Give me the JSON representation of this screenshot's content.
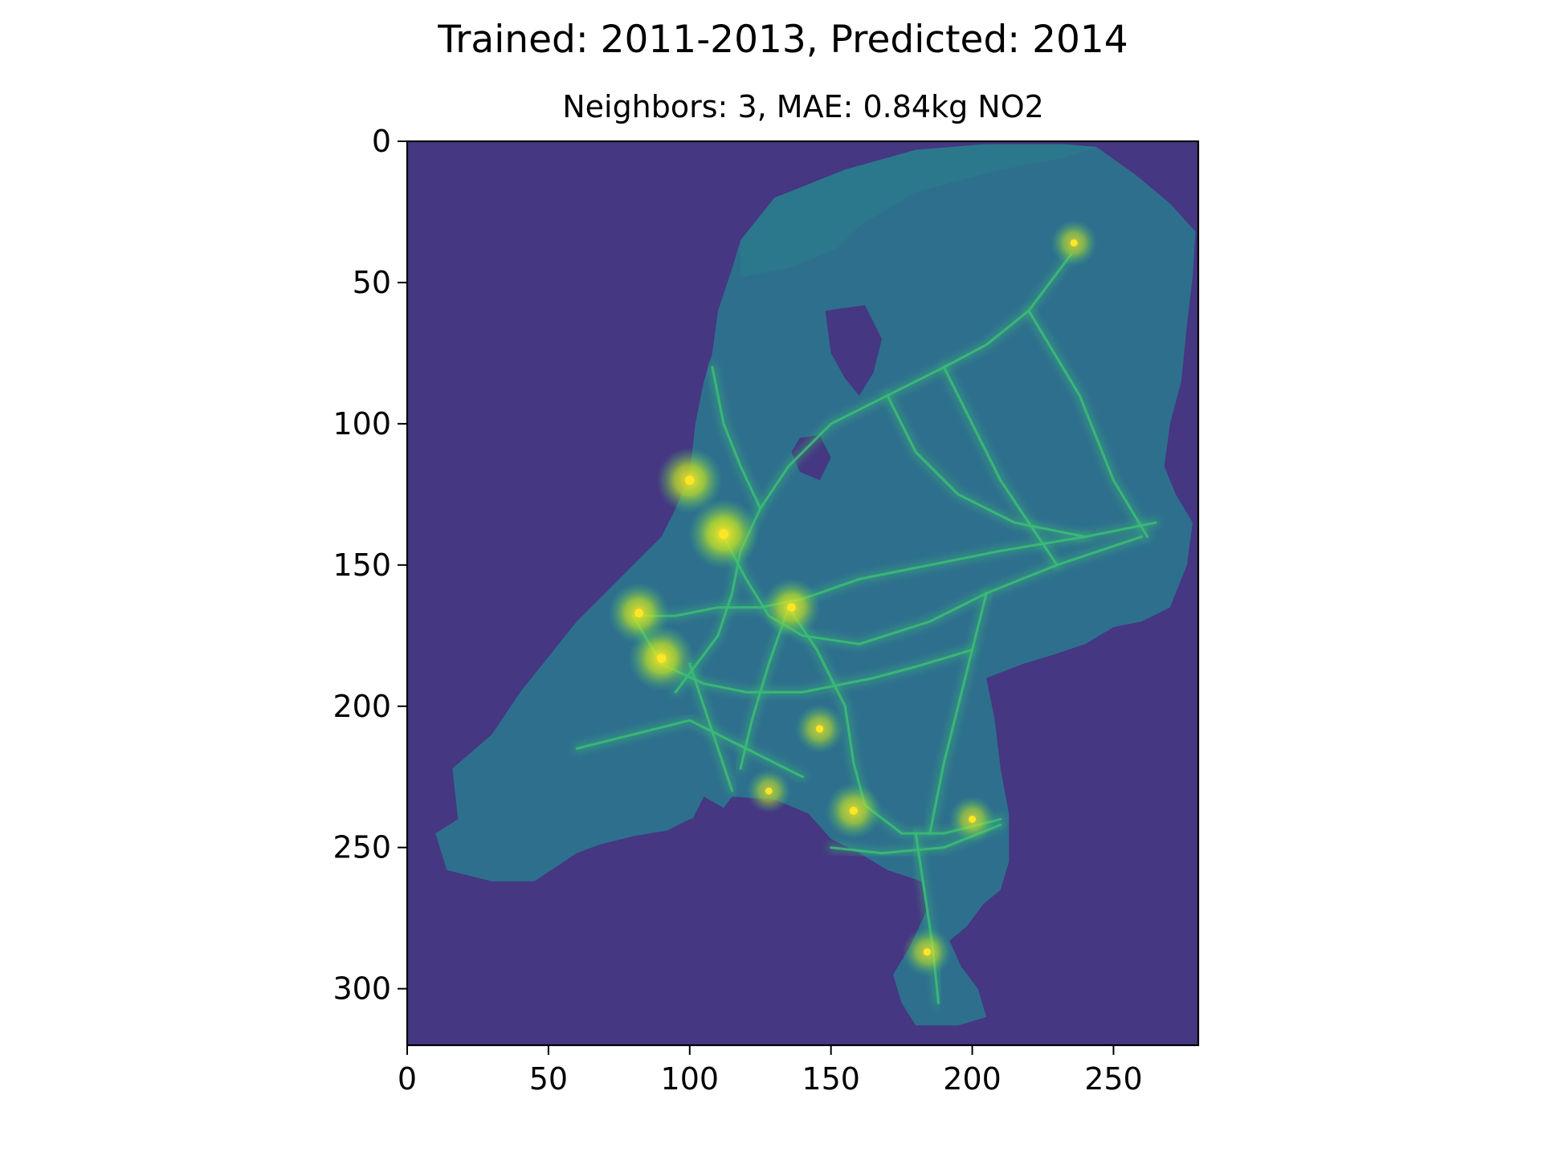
{
  "figure": {
    "suptitle": "Trained: 2011-2013, Predicted: 2014"
  },
  "chart_data": {
    "type": "heatmap",
    "title": "Neighbors: 3, MAE: 0.84kg NO2",
    "xlabel": "",
    "ylabel": "",
    "xlim": [
      0,
      280
    ],
    "ylim": [
      320,
      0
    ],
    "x_ticks": [
      0,
      50,
      100,
      150,
      200,
      250
    ],
    "y_ticks": [
      0,
      50,
      100,
      150,
      200,
      250,
      300
    ],
    "colormap": "viridis",
    "colors": {
      "background": "#453781",
      "land": "#2e6f8e",
      "land_light": "#2a7f8a",
      "road": "#3bbb75",
      "hotspot": "#b8de29",
      "peak": "#fde725"
    },
    "grid": false,
    "legend": "none",
    "regions": [
      {
        "name": "mainland",
        "outline": [
          [
            232,
            1
          ],
          [
            244,
            2
          ],
          [
            258,
            12
          ],
          [
            270,
            22
          ],
          [
            279,
            32
          ],
          [
            278,
            48
          ],
          [
            276,
            65
          ],
          [
            274,
            85
          ],
          [
            270,
            100
          ],
          [
            268,
            115
          ],
          [
            272,
            125
          ],
          [
            278,
            135
          ],
          [
            276,
            150
          ],
          [
            270,
            165
          ],
          [
            260,
            170
          ],
          [
            250,
            172
          ],
          [
            240,
            178
          ],
          [
            228,
            182
          ],
          [
            218,
            185
          ],
          [
            205,
            190
          ],
          [
            208,
            205
          ],
          [
            210,
            222
          ],
          [
            213,
            238
          ],
          [
            213,
            255
          ],
          [
            210,
            265
          ],
          [
            204,
            270
          ],
          [
            198,
            278
          ],
          [
            192,
            283
          ],
          [
            196,
            292
          ],
          [
            202,
            300
          ],
          [
            205,
            310
          ],
          [
            195,
            313
          ],
          [
            180,
            313
          ],
          [
            175,
            305
          ],
          [
            172,
            295
          ],
          [
            178,
            285
          ],
          [
            184,
            272
          ],
          [
            182,
            262
          ],
          [
            170,
            258
          ],
          [
            160,
            252
          ],
          [
            150,
            247
          ],
          [
            142,
            238
          ],
          [
            130,
            233
          ],
          [
            115,
            232
          ],
          [
            112,
            236
          ],
          [
            100,
            240
          ],
          [
            92,
            244
          ],
          [
            80,
            246
          ],
          [
            68,
            249
          ],
          [
            60,
            252
          ],
          [
            45,
            262
          ],
          [
            30,
            262
          ],
          [
            14,
            258
          ],
          [
            10,
            245
          ],
          [
            18,
            240
          ],
          [
            16,
            222
          ],
          [
            30,
            210
          ],
          [
            40,
            195
          ],
          [
            52,
            180
          ],
          [
            60,
            170
          ],
          [
            70,
            160
          ],
          [
            80,
            150
          ],
          [
            90,
            140
          ],
          [
            95,
            130
          ],
          [
            100,
            118
          ],
          [
            102,
            100
          ],
          [
            105,
            85
          ],
          [
            108,
            75
          ],
          [
            110,
            60
          ],
          [
            115,
            45
          ],
          [
            118,
            35
          ],
          [
            130,
            20
          ],
          [
            155,
            10
          ],
          [
            180,
            3
          ],
          [
            205,
            1
          ]
        ]
      },
      {
        "name": "ijsselmeer",
        "outline": [
          [
            148,
            60
          ],
          [
            162,
            58
          ],
          [
            168,
            70
          ],
          [
            165,
            82
          ],
          [
            160,
            90
          ],
          [
            155,
            84
          ],
          [
            150,
            75
          ]
        ]
      },
      {
        "name": "markermeer",
        "outline": [
          [
            139,
            105
          ],
          [
            146,
            104
          ],
          [
            150,
            112
          ],
          [
            146,
            120
          ],
          [
            139,
            117
          ],
          [
            136,
            110
          ]
        ]
      },
      {
        "name": "wadden-sea",
        "outline": [
          [
            118,
            35
          ],
          [
            130,
            20
          ],
          [
            155,
            10
          ],
          [
            180,
            3
          ],
          [
            205,
            1
          ],
          [
            232,
            1
          ],
          [
            244,
            2
          ],
          [
            232,
            6
          ],
          [
            210,
            10
          ],
          [
            180,
            18
          ],
          [
            160,
            30
          ],
          [
            152,
            38
          ],
          [
            135,
            45
          ],
          [
            118,
            48
          ]
        ]
      },
      {
        "name": "southern-water",
        "outline": [
          [
            105,
            232
          ],
          [
            112,
            236
          ],
          [
            125,
            233
          ],
          [
            142,
            238
          ],
          [
            150,
            247
          ],
          [
            130,
            247
          ],
          [
            110,
            245
          ],
          [
            100,
            242
          ]
        ]
      }
    ],
    "roads": [
      [
        [
          95,
          195
        ],
        [
          110,
          175
        ],
        [
          115,
          160
        ],
        [
          118,
          145
        ],
        [
          125,
          130
        ],
        [
          135,
          115
        ],
        [
          150,
          100
        ],
        [
          170,
          90
        ],
        [
          190,
          80
        ],
        [
          205,
          72
        ],
        [
          220,
          60
        ],
        [
          235,
          40
        ]
      ],
      [
        [
          112,
          140
        ],
        [
          120,
          155
        ],
        [
          128,
          168
        ],
        [
          140,
          175
        ],
        [
          160,
          178
        ],
        [
          185,
          170
        ],
        [
          205,
          160
        ],
        [
          230,
          150
        ],
        [
          260,
          140
        ]
      ],
      [
        [
          80,
          168
        ],
        [
          90,
          185
        ],
        [
          105,
          192
        ],
        [
          120,
          195
        ],
        [
          140,
          195
        ],
        [
          165,
          190
        ],
        [
          180,
          186
        ],
        [
          200,
          180
        ]
      ],
      [
        [
          82,
          168
        ],
        [
          95,
          168
        ],
        [
          110,
          165
        ],
        [
          125,
          165
        ],
        [
          140,
          162
        ],
        [
          160,
          155
        ],
        [
          185,
          150
        ],
        [
          210,
          145
        ],
        [
          240,
          140
        ],
        [
          265,
          135
        ]
      ],
      [
        [
          135,
          165
        ],
        [
          145,
          180
        ],
        [
          155,
          200
        ],
        [
          158,
          220
        ],
        [
          162,
          235
        ],
        [
          175,
          245
        ],
        [
          190,
          245
        ],
        [
          210,
          240
        ]
      ],
      [
        [
          100,
          185
        ],
        [
          105,
          200
        ],
        [
          110,
          215
        ],
        [
          115,
          230
        ]
      ],
      [
        [
          135,
          165
        ],
        [
          128,
          185
        ],
        [
          122,
          205
        ],
        [
          118,
          222
        ]
      ],
      [
        [
          150,
          250
        ],
        [
          168,
          252
        ],
        [
          190,
          250
        ],
        [
          210,
          242
        ]
      ],
      [
        [
          180,
          245
        ],
        [
          183,
          265
        ],
        [
          186,
          285
        ],
        [
          188,
          305
        ]
      ],
      [
        [
          205,
          160
        ],
        [
          200,
          180
        ],
        [
          195,
          200
        ],
        [
          190,
          220
        ],
        [
          185,
          245
        ]
      ],
      [
        [
          170,
          90
        ],
        [
          180,
          110
        ],
        [
          195,
          125
        ],
        [
          215,
          135
        ],
        [
          240,
          140
        ]
      ],
      [
        [
          220,
          60
        ],
        [
          238,
          90
        ],
        [
          250,
          120
        ],
        [
          262,
          140
        ]
      ],
      [
        [
          190,
          80
        ],
        [
          200,
          100
        ],
        [
          210,
          120
        ],
        [
          230,
          150
        ]
      ],
      [
        [
          60,
          215
        ],
        [
          80,
          210
        ],
        [
          100,
          205
        ],
        [
          120,
          215
        ],
        [
          140,
          225
        ]
      ],
      [
        [
          125,
          130
        ],
        [
          118,
          115
        ],
        [
          112,
          100
        ],
        [
          108,
          80
        ]
      ]
    ],
    "hotspots": [
      {
        "x": 112,
        "y": 139,
        "value": 1.0
      },
      {
        "x": 90,
        "y": 183,
        "value": 0.9
      },
      {
        "x": 82,
        "y": 167,
        "value": 0.8
      },
      {
        "x": 136,
        "y": 165,
        "value": 0.75
      },
      {
        "x": 158,
        "y": 237,
        "value": 0.7
      },
      {
        "x": 146,
        "y": 208,
        "value": 0.55
      },
      {
        "x": 100,
        "y": 120,
        "value": 0.9
      },
      {
        "x": 236,
        "y": 36,
        "value": 0.5
      },
      {
        "x": 184,
        "y": 287,
        "value": 0.55
      },
      {
        "x": 200,
        "y": 240,
        "value": 0.5
      },
      {
        "x": 128,
        "y": 230,
        "value": 0.45
      }
    ]
  }
}
